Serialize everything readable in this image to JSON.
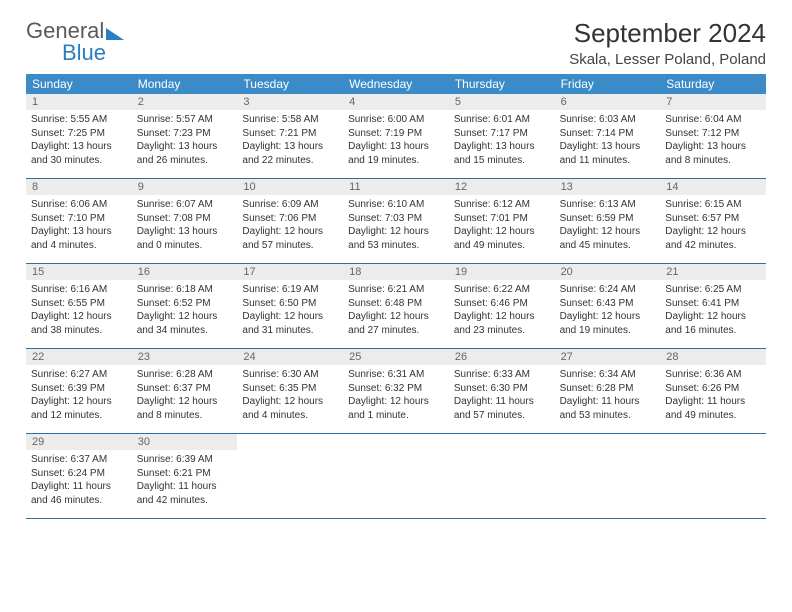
{
  "brand": {
    "word1": "General",
    "word2": "Blue"
  },
  "title": "September 2024",
  "location": "Skala, Lesser Poland, Poland",
  "colors": {
    "header_bg": "#3b8bc9",
    "header_text": "#ffffff",
    "daynum_bg": "#ececec",
    "daynum_text": "#666666",
    "rule": "#2b6fa3",
    "brand_gray": "#5a5a5a",
    "brand_blue": "#2a7ec4"
  },
  "days_of_week": [
    "Sunday",
    "Monday",
    "Tuesday",
    "Wednesday",
    "Thursday",
    "Friday",
    "Saturday"
  ],
  "weeks": [
    [
      {
        "n": "1",
        "sunrise": "5:55 AM",
        "sunset": "7:25 PM",
        "daylight": "13 hours and 30 minutes."
      },
      {
        "n": "2",
        "sunrise": "5:57 AM",
        "sunset": "7:23 PM",
        "daylight": "13 hours and 26 minutes."
      },
      {
        "n": "3",
        "sunrise": "5:58 AM",
        "sunset": "7:21 PM",
        "daylight": "13 hours and 22 minutes."
      },
      {
        "n": "4",
        "sunrise": "6:00 AM",
        "sunset": "7:19 PM",
        "daylight": "13 hours and 19 minutes."
      },
      {
        "n": "5",
        "sunrise": "6:01 AM",
        "sunset": "7:17 PM",
        "daylight": "13 hours and 15 minutes."
      },
      {
        "n": "6",
        "sunrise": "6:03 AM",
        "sunset": "7:14 PM",
        "daylight": "13 hours and 11 minutes."
      },
      {
        "n": "7",
        "sunrise": "6:04 AM",
        "sunset": "7:12 PM",
        "daylight": "13 hours and 8 minutes."
      }
    ],
    [
      {
        "n": "8",
        "sunrise": "6:06 AM",
        "sunset": "7:10 PM",
        "daylight": "13 hours and 4 minutes."
      },
      {
        "n": "9",
        "sunrise": "6:07 AM",
        "sunset": "7:08 PM",
        "daylight": "13 hours and 0 minutes."
      },
      {
        "n": "10",
        "sunrise": "6:09 AM",
        "sunset": "7:06 PM",
        "daylight": "12 hours and 57 minutes."
      },
      {
        "n": "11",
        "sunrise": "6:10 AM",
        "sunset": "7:03 PM",
        "daylight": "12 hours and 53 minutes."
      },
      {
        "n": "12",
        "sunrise": "6:12 AM",
        "sunset": "7:01 PM",
        "daylight": "12 hours and 49 minutes."
      },
      {
        "n": "13",
        "sunrise": "6:13 AM",
        "sunset": "6:59 PM",
        "daylight": "12 hours and 45 minutes."
      },
      {
        "n": "14",
        "sunrise": "6:15 AM",
        "sunset": "6:57 PM",
        "daylight": "12 hours and 42 minutes."
      }
    ],
    [
      {
        "n": "15",
        "sunrise": "6:16 AM",
        "sunset": "6:55 PM",
        "daylight": "12 hours and 38 minutes."
      },
      {
        "n": "16",
        "sunrise": "6:18 AM",
        "sunset": "6:52 PM",
        "daylight": "12 hours and 34 minutes."
      },
      {
        "n": "17",
        "sunrise": "6:19 AM",
        "sunset": "6:50 PM",
        "daylight": "12 hours and 31 minutes."
      },
      {
        "n": "18",
        "sunrise": "6:21 AM",
        "sunset": "6:48 PM",
        "daylight": "12 hours and 27 minutes."
      },
      {
        "n": "19",
        "sunrise": "6:22 AM",
        "sunset": "6:46 PM",
        "daylight": "12 hours and 23 minutes."
      },
      {
        "n": "20",
        "sunrise": "6:24 AM",
        "sunset": "6:43 PM",
        "daylight": "12 hours and 19 minutes."
      },
      {
        "n": "21",
        "sunrise": "6:25 AM",
        "sunset": "6:41 PM",
        "daylight": "12 hours and 16 minutes."
      }
    ],
    [
      {
        "n": "22",
        "sunrise": "6:27 AM",
        "sunset": "6:39 PM",
        "daylight": "12 hours and 12 minutes."
      },
      {
        "n": "23",
        "sunrise": "6:28 AM",
        "sunset": "6:37 PM",
        "daylight": "12 hours and 8 minutes."
      },
      {
        "n": "24",
        "sunrise": "6:30 AM",
        "sunset": "6:35 PM",
        "daylight": "12 hours and 4 minutes."
      },
      {
        "n": "25",
        "sunrise": "6:31 AM",
        "sunset": "6:32 PM",
        "daylight": "12 hours and 1 minute."
      },
      {
        "n": "26",
        "sunrise": "6:33 AM",
        "sunset": "6:30 PM",
        "daylight": "11 hours and 57 minutes."
      },
      {
        "n": "27",
        "sunrise": "6:34 AM",
        "sunset": "6:28 PM",
        "daylight": "11 hours and 53 minutes."
      },
      {
        "n": "28",
        "sunrise": "6:36 AM",
        "sunset": "6:26 PM",
        "daylight": "11 hours and 49 minutes."
      }
    ],
    [
      {
        "n": "29",
        "sunrise": "6:37 AM",
        "sunset": "6:24 PM",
        "daylight": "11 hours and 46 minutes."
      },
      {
        "n": "30",
        "sunrise": "6:39 AM",
        "sunset": "6:21 PM",
        "daylight": "11 hours and 42 minutes."
      },
      null,
      null,
      null,
      null,
      null
    ]
  ],
  "labels": {
    "sunrise": "Sunrise:",
    "sunset": "Sunset:",
    "daylight": "Daylight:"
  }
}
